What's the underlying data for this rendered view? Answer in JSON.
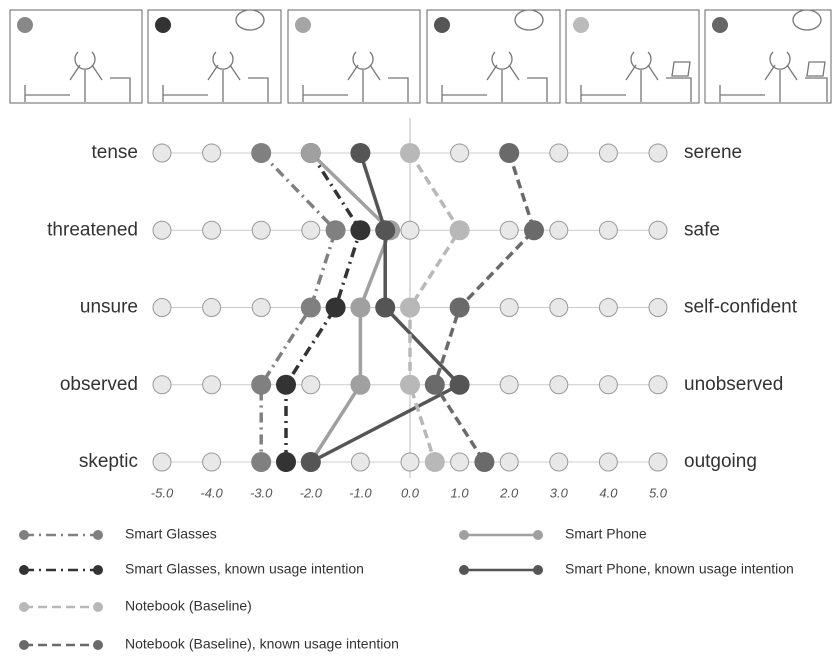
{
  "chart_data": {
    "type": "line",
    "categories": [
      "tense",
      "threatened",
      "unsure",
      "observed",
      "skeptic"
    ],
    "right_categories": [
      "serene",
      "safe",
      "self-confident",
      "unobserved",
      "outgoing"
    ],
    "xlim": [
      -5,
      5
    ],
    "xticks": [
      {
        "value": -5,
        "label": "-5.0"
      },
      {
        "value": -4,
        "label": "-4.0"
      },
      {
        "value": -3,
        "label": "-3.0"
      },
      {
        "value": -2,
        "label": "-2.0"
      },
      {
        "value": -1,
        "label": "-1.0"
      },
      {
        "value": 0,
        "label": "0.0"
      },
      {
        "value": 1,
        "label": "1.0"
      },
      {
        "value": 2,
        "label": "2.0"
      },
      {
        "value": 3,
        "label": "3.0"
      },
      {
        "value": 4,
        "label": "4.0"
      },
      {
        "value": 5,
        "label": "5.0"
      }
    ],
    "series": [
      {
        "name": "Smart Glasses",
        "color": "#808080",
        "dash": "dashdot",
        "values": [
          -3,
          -1.5,
          -2,
          -3,
          -3
        ]
      },
      {
        "name": "Smart Glasses, known usage intention",
        "color": "#333333",
        "dash": "dashdot",
        "values": [
          -2,
          -1,
          -1.5,
          -2.5,
          -2.5
        ]
      },
      {
        "name": "Smart Phone",
        "color": "#a0a0a0",
        "dash": "solid",
        "values": [
          -2,
          -0.4,
          -1,
          -1,
          -2
        ]
      },
      {
        "name": "Smart Phone, known usage intention",
        "color": "#555555",
        "dash": "solid",
        "values": [
          -1,
          -0.5,
          -0.5,
          1,
          -2
        ]
      },
      {
        "name": "Notebook (Baseline)",
        "color": "#b8b8b8",
        "dash": "dashed",
        "values": [
          0,
          1,
          0,
          0,
          0.5
        ]
      },
      {
        "name": "Notebook (Baseline), known usage intention",
        "color": "#6a6a6a",
        "dash": "dashed",
        "values": [
          2,
          2.5,
          1,
          0.5,
          1.5
        ]
      }
    ]
  }
}
